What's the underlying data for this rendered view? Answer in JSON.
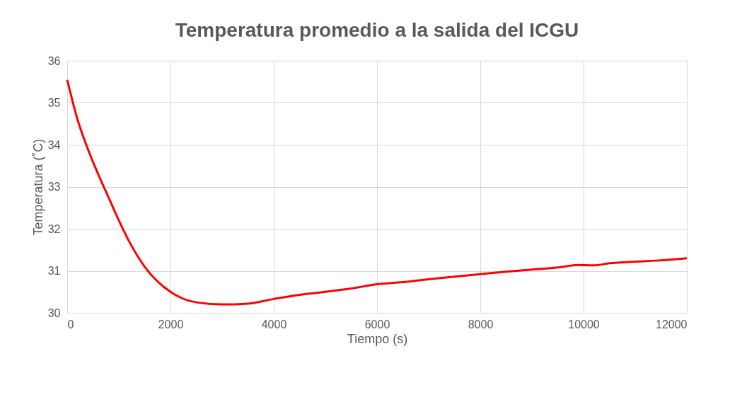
{
  "chart_data": {
    "type": "line",
    "title": "Temperatura promedio a la salida del ICGU",
    "xlabel": "Tiempo (s)",
    "ylabel": "Temperatura (˚C)",
    "x": [
      0,
      200,
      400,
      600,
      800,
      1000,
      1200,
      1500,
      2000,
      2500,
      3000,
      3500,
      4000,
      4500,
      5000,
      5500,
      6000,
      6500,
      7000,
      7500,
      8000,
      8500,
      9000,
      9500,
      9900,
      10200,
      10500,
      11000,
      11500,
      12000
    ],
    "series": [
      {
        "color": "#ff0000",
        "values": [
          35.55,
          34.6,
          33.9,
          33.3,
          32.75,
          32.2,
          31.7,
          31.1,
          30.5,
          30.25,
          30.2,
          30.22,
          30.33,
          30.43,
          30.5,
          30.58,
          30.68,
          30.73,
          30.8,
          30.86,
          30.92,
          30.98,
          31.03,
          31.08,
          31.14,
          31.13,
          31.18,
          31.22,
          31.25,
          31.3
        ]
      }
    ],
    "xlim": [
      0,
      12000
    ],
    "xticks": [
      0,
      2000,
      4000,
      6000,
      8000,
      10000,
      12000
    ],
    "ylim": [
      30,
      36
    ],
    "yticks": [
      30,
      31,
      32,
      33,
      34,
      35,
      36
    ],
    "grid": true,
    "marker": "none",
    "line_style": "solid"
  }
}
